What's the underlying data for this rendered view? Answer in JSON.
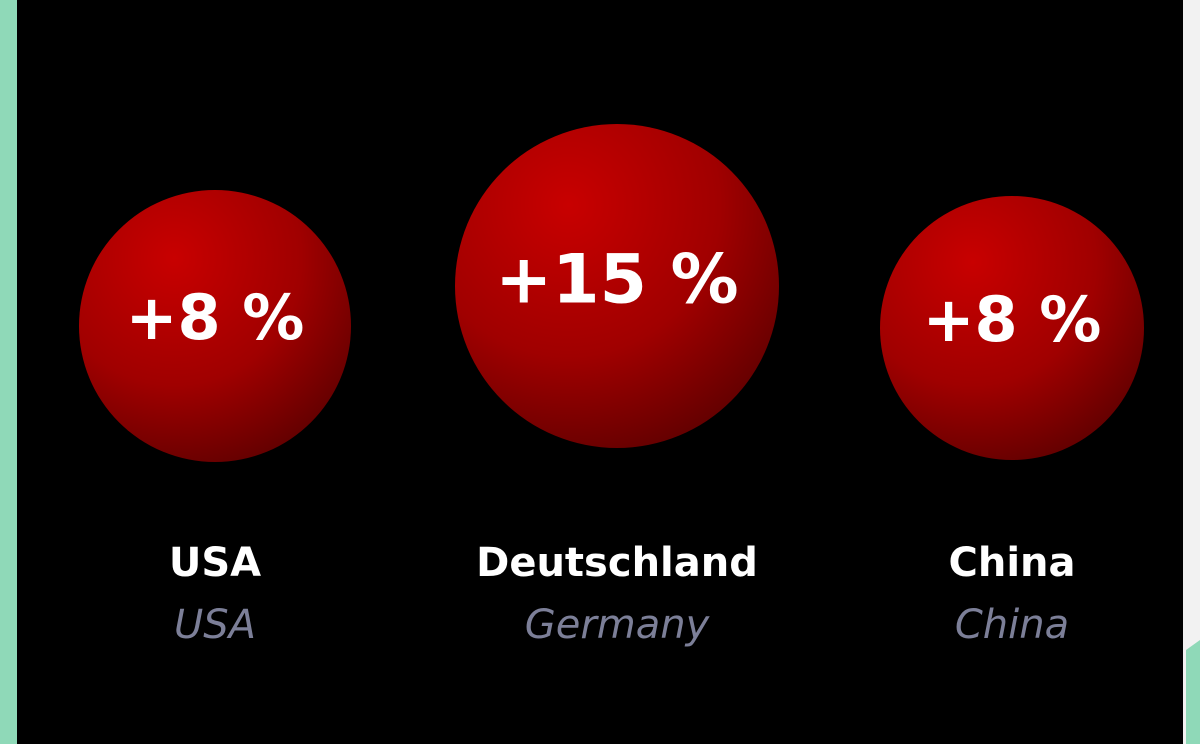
{
  "items": [
    {
      "value": "+8 %",
      "name": "USA",
      "translation": "USA"
    },
    {
      "value": "+15 %",
      "name": "Deutschland",
      "translation": "Germany"
    },
    {
      "value": "+8 %",
      "name": "China",
      "translation": "China"
    }
  ]
}
